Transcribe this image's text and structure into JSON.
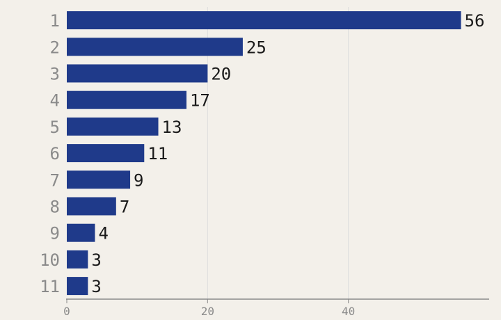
{
  "colors": {
    "background": "#f3f0ea",
    "bar": "#1f3a8a",
    "grid": "#dddddd",
    "axis": "#8a8a8a",
    "category_text": "#8a8a8a",
    "value_text": "#1a1a1a"
  },
  "chart_data": {
    "type": "bar",
    "orientation": "horizontal",
    "categories": [
      "1",
      "2",
      "3",
      "4",
      "5",
      "6",
      "7",
      "8",
      "9",
      "10",
      "11"
    ],
    "values": [
      56,
      25,
      20,
      17,
      13,
      11,
      9,
      7,
      4,
      3,
      3
    ],
    "data_labels": [
      "56",
      "25",
      "20",
      "17",
      "13",
      "11",
      "9",
      "7",
      "4",
      "3",
      "3"
    ],
    "x_ticks": [
      0,
      20,
      40
    ],
    "x_tick_labels": [
      "0",
      "20",
      "40"
    ],
    "xlim": [
      0,
      60
    ],
    "grid": true,
    "title": "",
    "xlabel": "",
    "ylabel": ""
  }
}
